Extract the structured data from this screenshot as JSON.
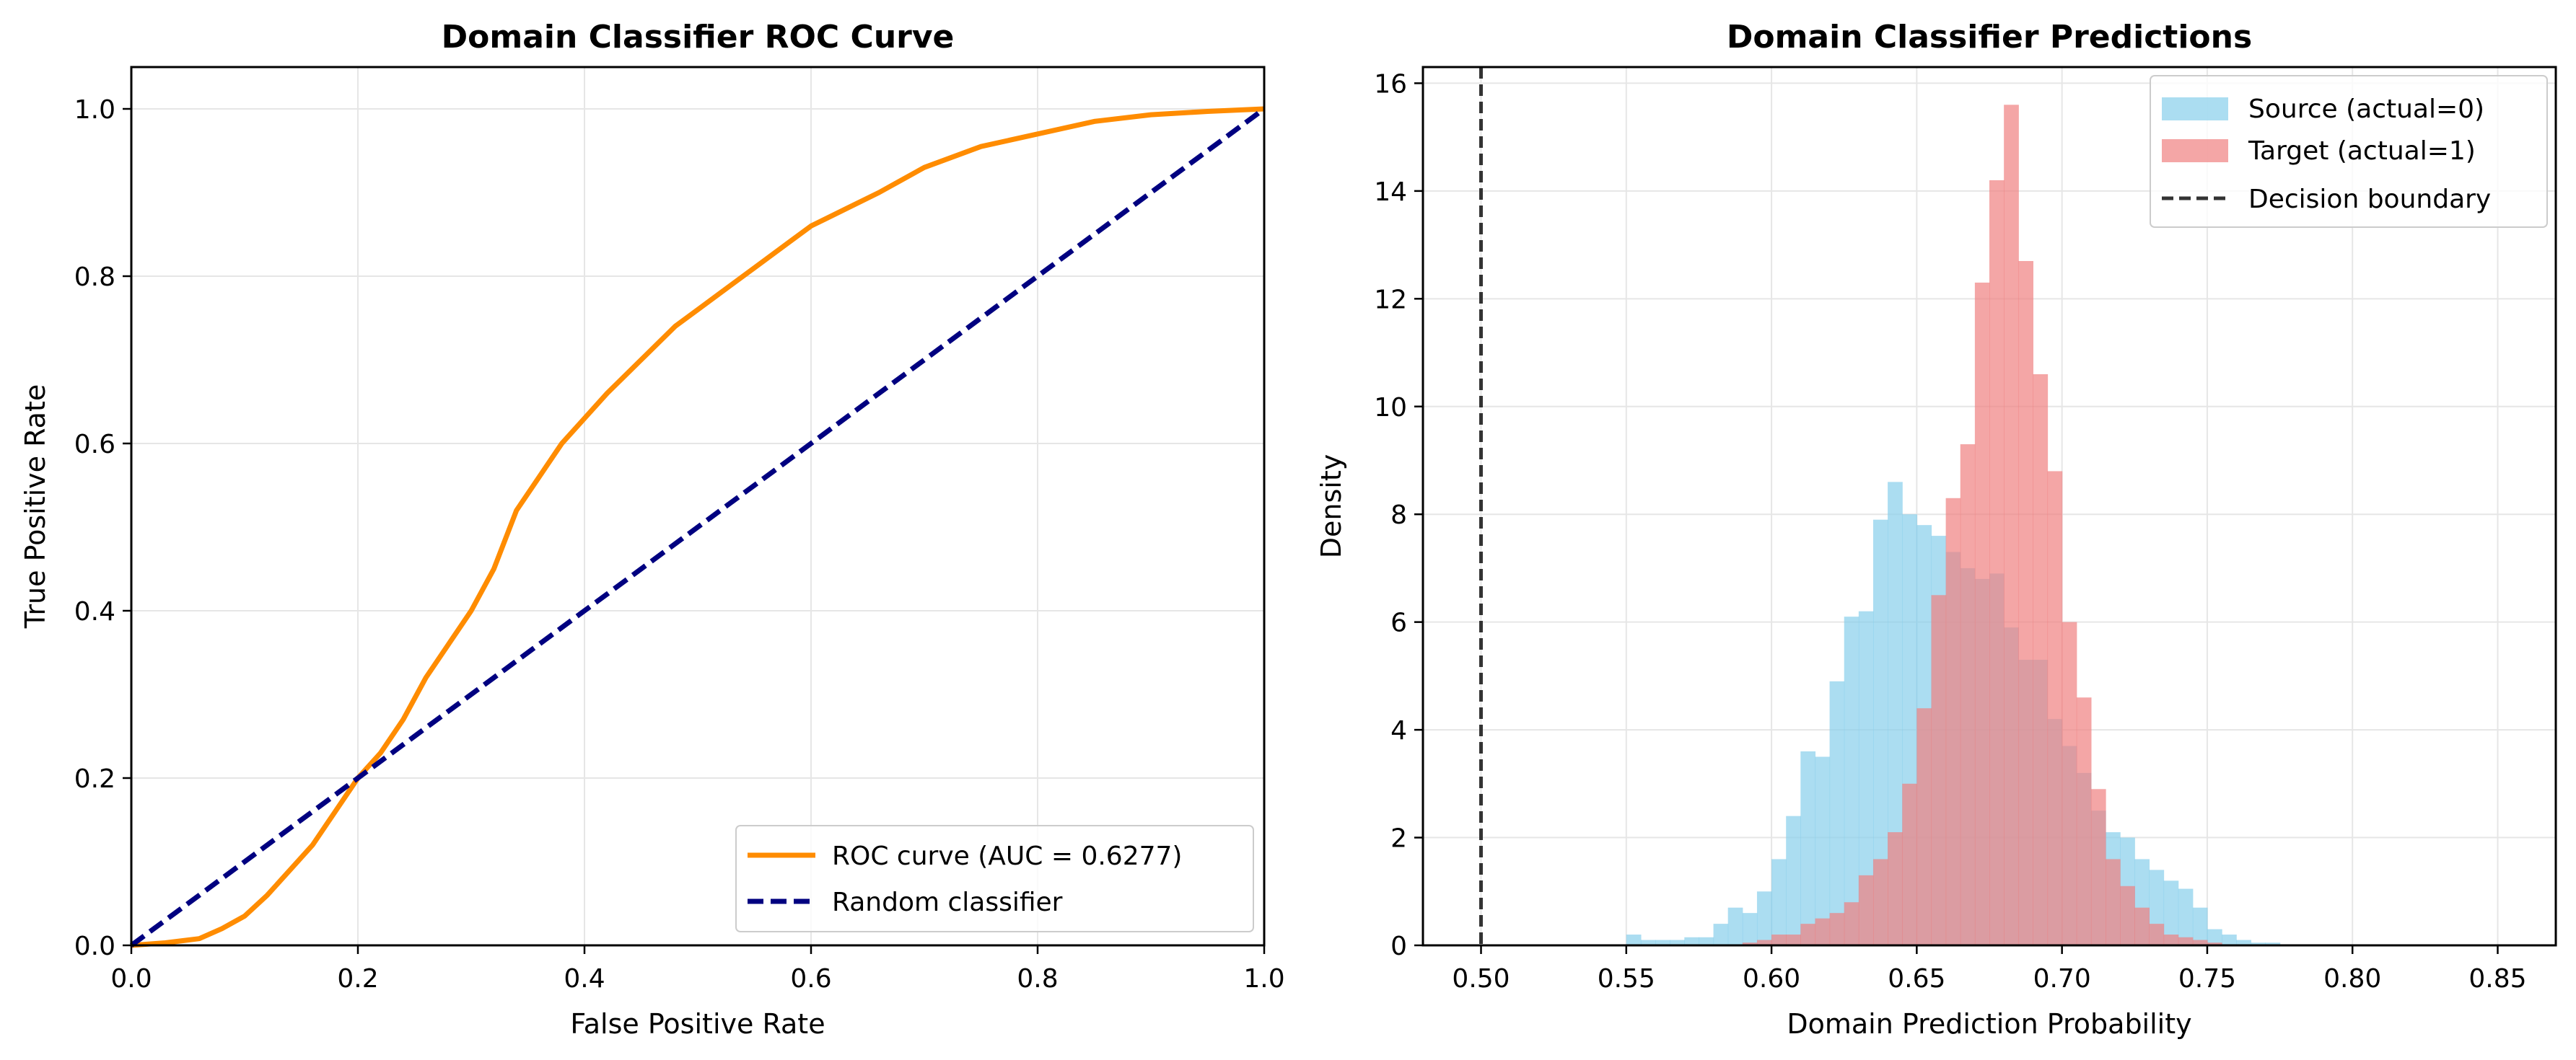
{
  "chart_data": [
    {
      "type": "line",
      "title": "Domain Classifier ROC Curve",
      "xlabel": "False Positive Rate",
      "ylabel": "True Positive Rate",
      "xlim": [
        0,
        1
      ],
      "ylim": [
        0,
        1.05
      ],
      "xticks": [
        "0.0",
        "0.2",
        "0.4",
        "0.6",
        "0.8",
        "1.0"
      ],
      "yticks": [
        "0.0",
        "0.2",
        "0.4",
        "0.6",
        "0.8",
        "1.0"
      ],
      "grid": true,
      "legend_position": "lower-right",
      "series": [
        {
          "name": "ROC curve (AUC = 0.6277)",
          "color": "#ff8c00",
          "style": "solid",
          "x": [
            0,
            0.03,
            0.06,
            0.08,
            0.1,
            0.12,
            0.14,
            0.16,
            0.18,
            0.2,
            0.22,
            0.24,
            0.26,
            0.28,
            0.3,
            0.32,
            0.34,
            0.36,
            0.38,
            0.4,
            0.42,
            0.45,
            0.48,
            0.5,
            0.52,
            0.55,
            0.58,
            0.6,
            0.63,
            0.66,
            0.7,
            0.75,
            0.8,
            0.85,
            0.9,
            0.95,
            1.0
          ],
          "y": [
            0,
            0.003,
            0.008,
            0.02,
            0.035,
            0.06,
            0.09,
            0.12,
            0.16,
            0.2,
            0.23,
            0.27,
            0.32,
            0.36,
            0.4,
            0.45,
            0.52,
            0.56,
            0.6,
            0.63,
            0.66,
            0.7,
            0.74,
            0.76,
            0.78,
            0.81,
            0.84,
            0.86,
            0.88,
            0.9,
            0.93,
            0.955,
            0.97,
            0.985,
            0.993,
            0.997,
            1.0
          ]
        },
        {
          "name": "Random classifier",
          "color": "#000080",
          "style": "dashed",
          "x": [
            0,
            1
          ],
          "y": [
            0,
            1
          ]
        }
      ]
    },
    {
      "type": "histogram",
      "title": "Domain Classifier Predictions",
      "xlabel": "Domain Prediction Probability",
      "ylabel": "Density",
      "xlim": [
        0.48,
        0.87
      ],
      "ylim": [
        0,
        16.3
      ],
      "xticks": [
        "0.50",
        "0.55",
        "0.60",
        "0.65",
        "0.70",
        "0.75",
        "0.80",
        "0.85"
      ],
      "yticks": [
        "0",
        "2",
        "4",
        "6",
        "8",
        "10",
        "12",
        "14",
        "16"
      ],
      "grid": true,
      "legend_position": "upper-right",
      "bin_width": 0.005,
      "series": [
        {
          "name": "Source (actual=0)",
          "color": "#87ceeb",
          "bin_start": 0.55,
          "values": [
            0.2,
            0.1,
            0.1,
            0.1,
            0.15,
            0.15,
            0.4,
            0.7,
            0.6,
            1.0,
            1.6,
            2.4,
            3.6,
            3.5,
            4.9,
            6.1,
            6.2,
            7.9,
            8.6,
            8.0,
            7.8,
            7.6,
            7.3,
            7.0,
            6.8,
            6.9,
            5.9,
            5.3,
            5.3,
            4.2,
            3.7,
            3.2,
            2.5,
            2.1,
            2.0,
            1.6,
            1.4,
            1.2,
            1.05,
            0.7,
            0.3,
            0.2,
            0.1,
            0.05,
            0.05
          ],
          "opacity": 0.7
        },
        {
          "name": "Target (actual=1)",
          "color": "#f08080",
          "bin_start": 0.59,
          "values": [
            0.05,
            0.1,
            0.2,
            0.2,
            0.4,
            0.5,
            0.6,
            0.8,
            1.3,
            1.6,
            2.1,
            3.0,
            4.4,
            6.5,
            8.3,
            9.3,
            12.3,
            14.2,
            15.6,
            12.7,
            10.6,
            8.8,
            6.0,
            4.6,
            2.9,
            1.6,
            1.1,
            0.7,
            0.4,
            0.2,
            0.15,
            0.1,
            0.05
          ],
          "opacity": 0.7
        },
        {
          "name": "Decision boundary",
          "color": "#333333",
          "style": "dashed",
          "vline": 0.5
        }
      ]
    }
  ]
}
